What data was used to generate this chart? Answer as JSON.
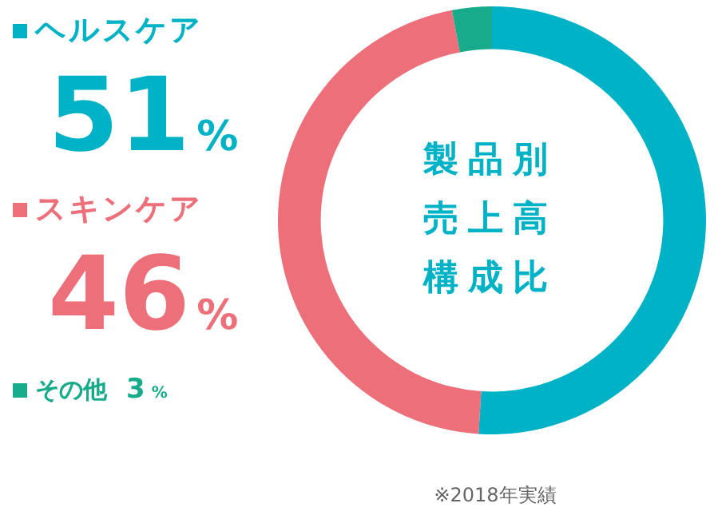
{
  "chart_data": {
    "type": "donut",
    "title": "製品別売上高構成比",
    "categories": [
      "ヘルスケア",
      "スキンケア",
      "その他"
    ],
    "values": [
      51,
      46,
      3
    ],
    "value_labels": [
      "51%",
      "46%",
      "3%"
    ],
    "colors": [
      "#00b2c6",
      "#ec6f7a",
      "#17ab8c"
    ],
    "legend": "left",
    "annotations": [
      "※2018年実績"
    ]
  }
}
